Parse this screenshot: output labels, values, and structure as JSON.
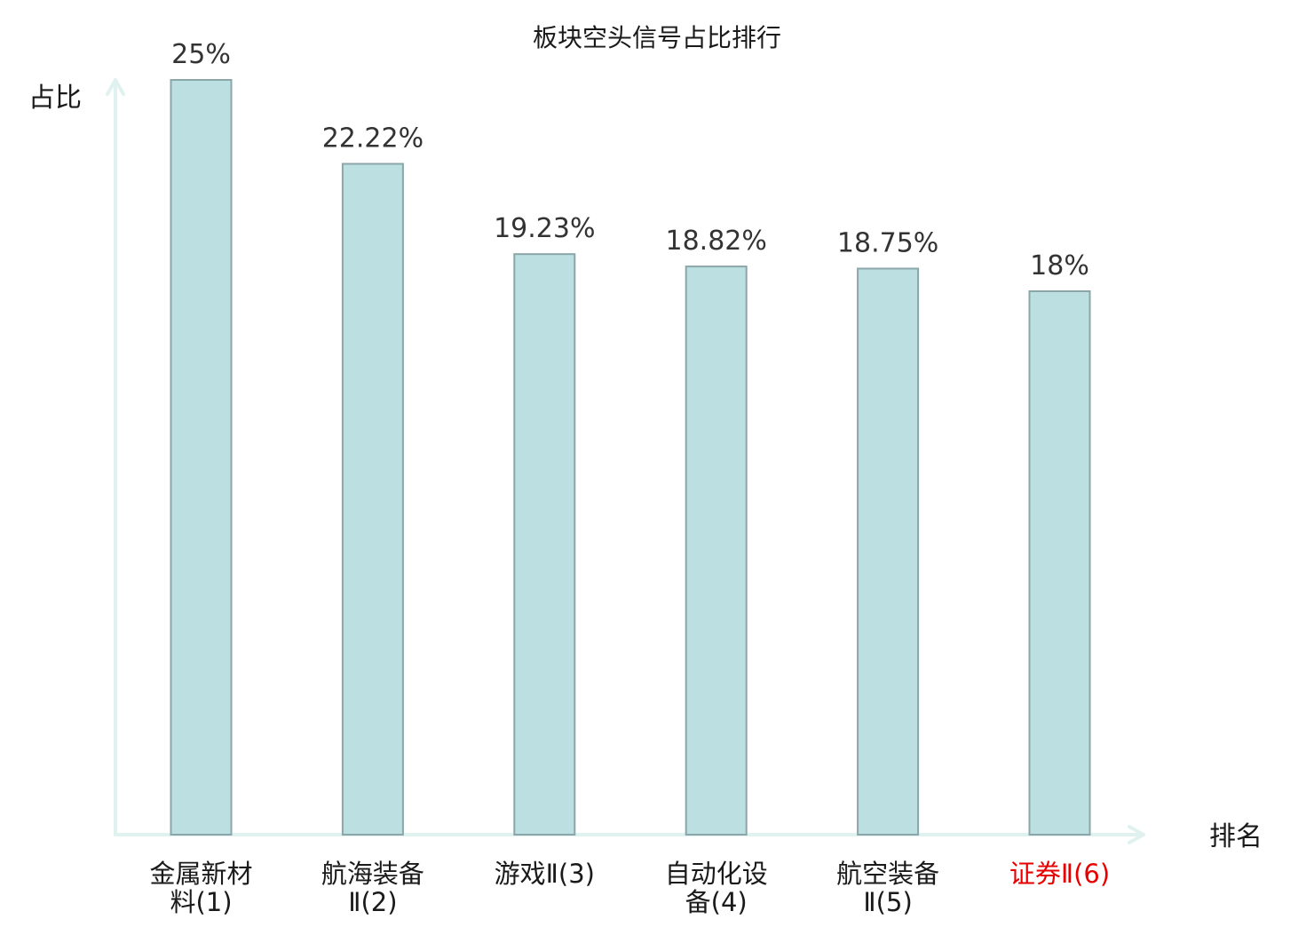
{
  "chart_data": {
    "type": "bar",
    "title": "板块空头信号占比排行",
    "ylabel": "占比",
    "xlabel": "排名",
    "categories": [
      {
        "line1": "金属新材",
        "line2": "料(1)",
        "highlight": false
      },
      {
        "line1": "航海装备",
        "line2": "Ⅱ(2)",
        "highlight": false
      },
      {
        "line1": "游戏Ⅱ(3)",
        "line2": "",
        "highlight": false
      },
      {
        "line1": "自动化设",
        "line2": "备(4)",
        "highlight": false
      },
      {
        "line1": "航空装备",
        "line2": "Ⅱ(5)",
        "highlight": false
      },
      {
        "line1": "证券Ⅱ(6)",
        "line2": "",
        "highlight": true
      }
    ],
    "values": [
      25,
      22.22,
      19.23,
      18.82,
      18.75,
      18
    ],
    "value_labels": [
      "25%",
      "22.22%",
      "19.23%",
      "18.82%",
      "18.75%",
      "18%"
    ],
    "ylim": [
      0,
      25
    ],
    "grid": false,
    "colors": {
      "bar_fill": "#bce0e2",
      "bar_stroke": "#8aa6a8",
      "axis": "#e0f2ef",
      "label_text": "#1a1a1a",
      "highlight_text": "#e60000"
    }
  }
}
